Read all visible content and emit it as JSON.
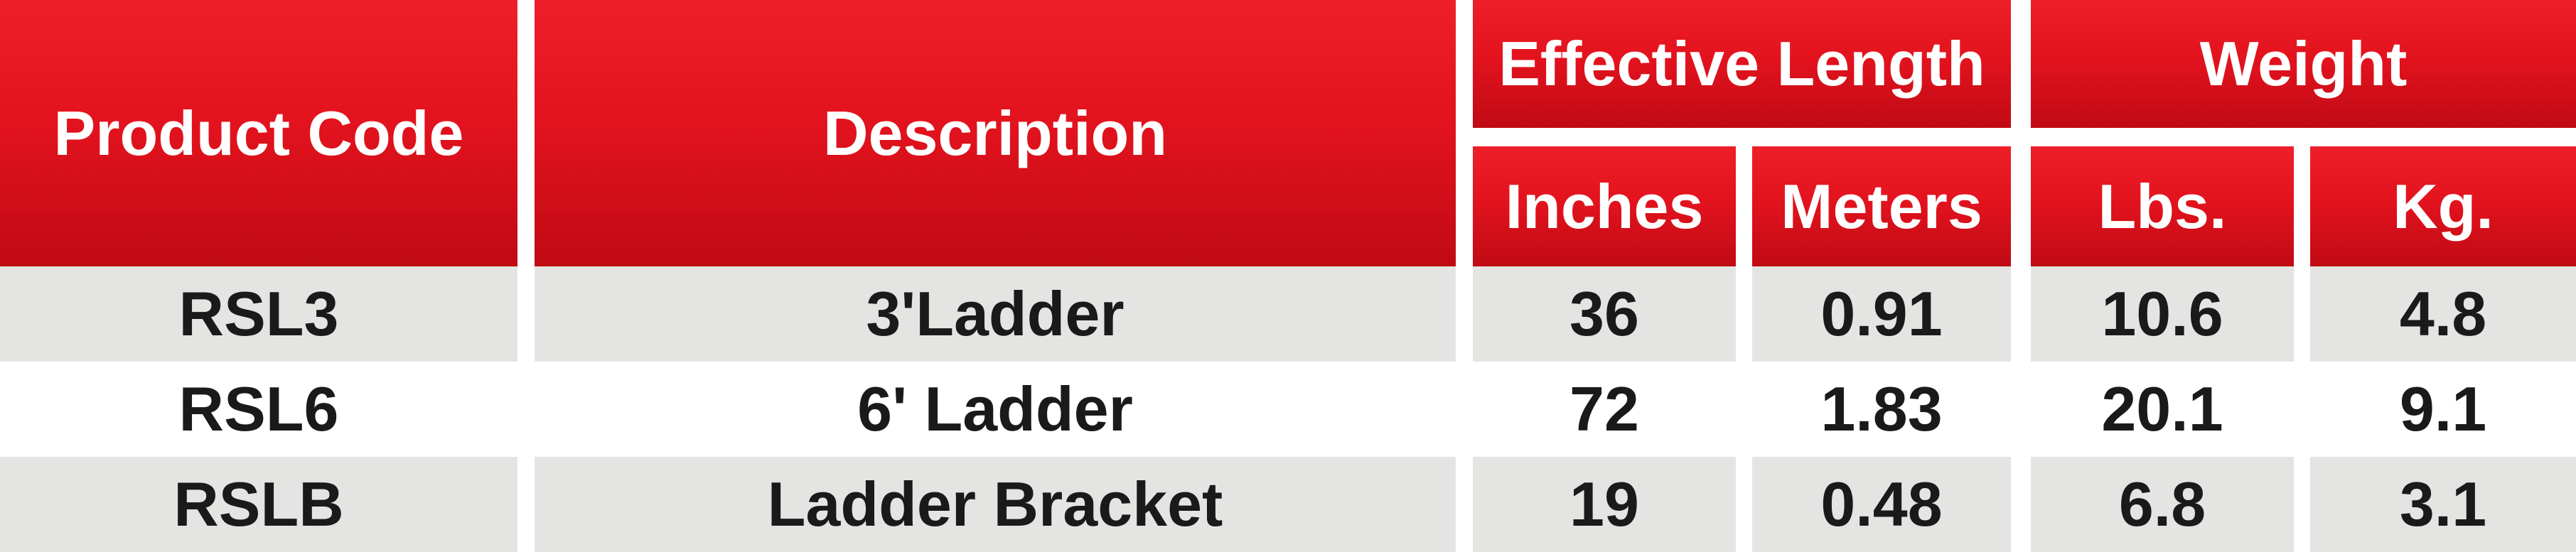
{
  "table": {
    "headers": {
      "product_code": "Product Code",
      "description": "Description",
      "effective_length": "Effective Length",
      "weight": "Weight",
      "inches": "Inches",
      "meters": "Meters",
      "lbs": "Lbs.",
      "kg": "Kg."
    },
    "rows": [
      {
        "code": "RSL3",
        "description": "3'Ladder",
        "inches": "36",
        "meters": "0.91",
        "lbs": "10.6",
        "kg": "4.8"
      },
      {
        "code": "RSL6",
        "description": "6' Ladder",
        "inches": "72",
        "meters": "1.83",
        "lbs": "20.1",
        "kg": "9.1"
      },
      {
        "code": "RSLB",
        "description": "Ladder Bracket",
        "inches": "19",
        "meters": "0.48",
        "lbs": "6.8",
        "kg": "3.1"
      }
    ]
  },
  "colors": {
    "header_red": "#e3131e",
    "header_text": "#ffffff",
    "shaded_row": "#e4e5e3",
    "plain_row": "#ffffff",
    "body_text": "#1a1a1a"
  }
}
